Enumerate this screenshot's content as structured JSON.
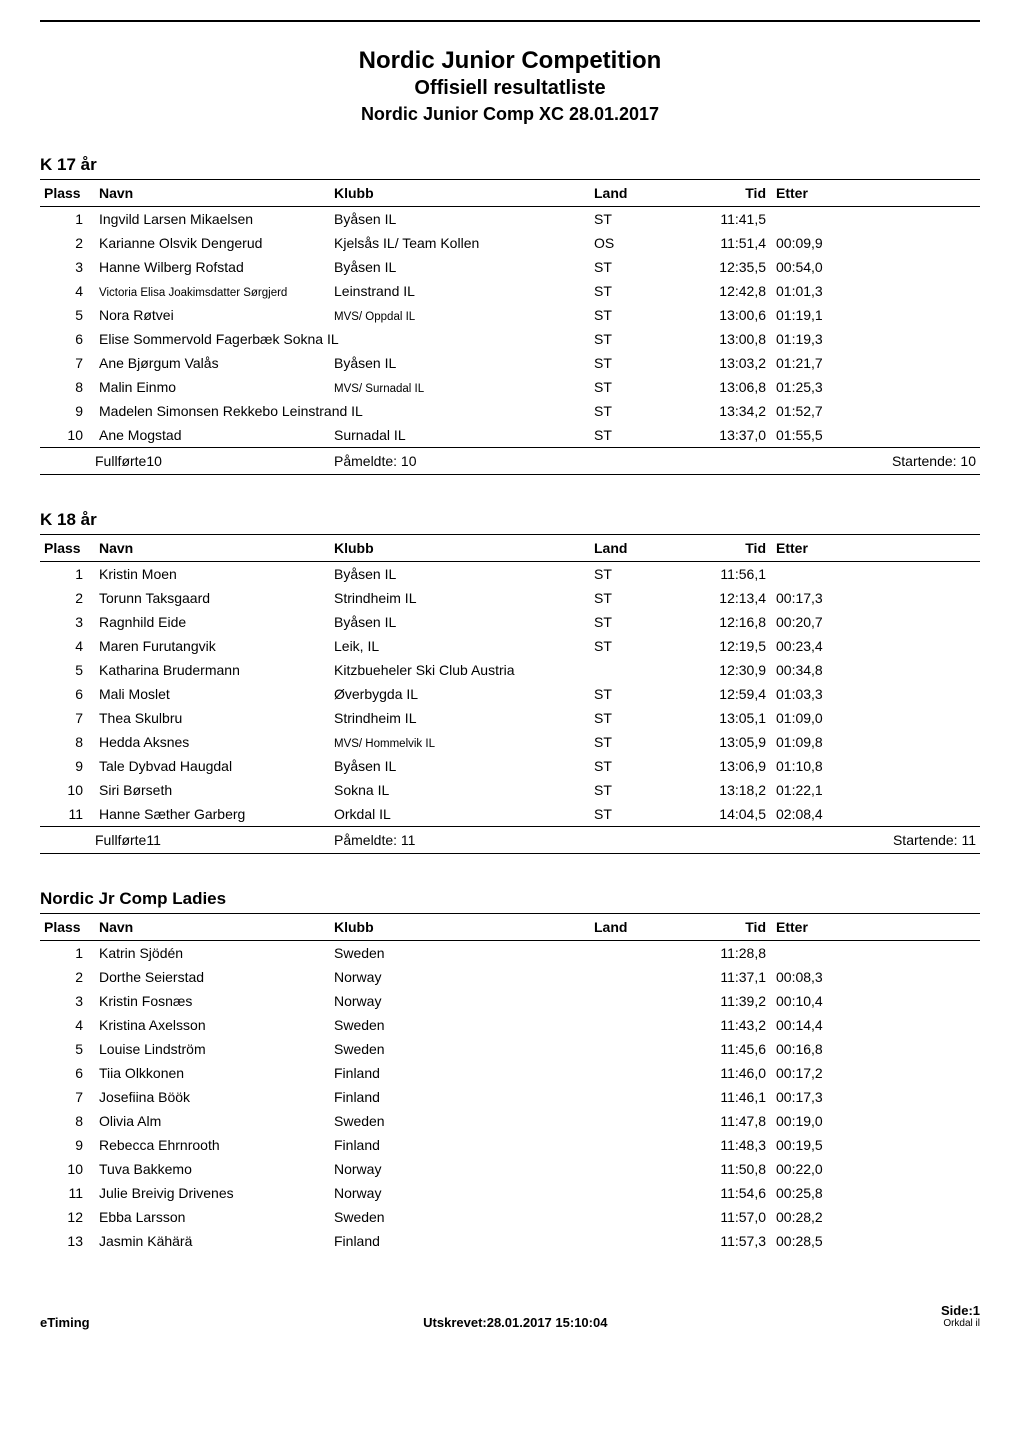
{
  "header": {
    "title": "Nordic Junior Competition",
    "subtitle": "Offisiell resultatliste",
    "comp_name": "Nordic Junior Comp XC 28.01.2017"
  },
  "columns": {
    "plass": "Plass",
    "navn": "Navn",
    "klubb": "Klubb",
    "land": "Land",
    "tid": "Tid",
    "etter": "Etter"
  },
  "sections": [
    {
      "title": "K 17 år",
      "rows": [
        {
          "plass": "1",
          "navn": "Ingvild Larsen Mikaelsen",
          "klubb": "Byåsen IL",
          "land": "ST",
          "tid": "11:41,5",
          "etter": ""
        },
        {
          "plass": "2",
          "navn": "Karianne Olsvik Dengerud",
          "klubb": "Kjelsås IL/ Team Kollen",
          "land": "OS",
          "tid": "11:51,4",
          "etter": "00:09,9"
        },
        {
          "plass": "3",
          "navn": "Hanne Wilberg Rofstad",
          "klubb": "Byåsen IL",
          "land": "ST",
          "tid": "12:35,5",
          "etter": "00:54,0"
        },
        {
          "plass": "4",
          "navn": "Victoria Elisa Joakimsdatter Sørgjerd",
          "navn_small": true,
          "klubb": "Leinstrand IL",
          "land": "ST",
          "tid": "12:42,8",
          "etter": "01:01,3"
        },
        {
          "plass": "5",
          "navn": "Nora Røtvei",
          "klubb": "MVS/ Oppdal IL",
          "klubb_small": true,
          "land": "ST",
          "tid": "13:00,6",
          "etter": "01:19,1"
        },
        {
          "plass": "6",
          "navn": "Elise Sommervold Fagerbæk",
          "klubb": "Sokna IL",
          "merged_navn_klubb": true,
          "land": "ST",
          "tid": "13:00,8",
          "etter": "01:19,3"
        },
        {
          "plass": "7",
          "navn": "Ane Bjørgum Valås",
          "klubb": "Byåsen IL",
          "land": "ST",
          "tid": "13:03,2",
          "etter": "01:21,7"
        },
        {
          "plass": "8",
          "navn": "Malin Einmo",
          "klubb": "MVS/ Surnadal IL",
          "klubb_small": true,
          "land": "ST",
          "tid": "13:06,8",
          "etter": "01:25,3"
        },
        {
          "plass": "9",
          "navn": "Madelen Simonsen Rekkebo",
          "klubb": "Leinstrand IL",
          "merged_navn_klubb": true,
          "land": "ST",
          "tid": "13:34,2",
          "etter": "01:52,7"
        },
        {
          "plass": "10",
          "navn": "Ane Mogstad",
          "klubb": "Surnadal IL",
          "land": "ST",
          "tid": "13:37,0",
          "etter": "01:55,5"
        }
      ],
      "summary": {
        "fullforte": "Fullførte10",
        "pameldte": "Påmeldte: 10",
        "startende": "Startende: 10"
      }
    },
    {
      "title": "K 18 år",
      "rows": [
        {
          "plass": "1",
          "navn": "Kristin Moen",
          "klubb": "Byåsen IL",
          "land": "ST",
          "tid": "11:56,1",
          "etter": ""
        },
        {
          "plass": "2",
          "navn": "Torunn Taksgaard",
          "klubb": "Strindheim IL",
          "land": "ST",
          "tid": "12:13,4",
          "etter": "00:17,3"
        },
        {
          "plass": "3",
          "navn": "Ragnhild Eide",
          "klubb": "Byåsen IL",
          "land": "ST",
          "tid": "12:16,8",
          "etter": "00:20,7"
        },
        {
          "plass": "4",
          "navn": "Maren Furutangvik",
          "klubb": "Leik, IL",
          "land": "ST",
          "tid": "12:19,5",
          "etter": "00:23,4"
        },
        {
          "plass": "5",
          "navn": "Katharina Brudermann",
          "klubb": "Kitzbueheler Ski Club Austria",
          "land": "",
          "tid": "12:30,9",
          "etter": "00:34,8"
        },
        {
          "plass": "6",
          "navn": "Mali Moslet",
          "klubb": "Øverbygda IL",
          "land": "ST",
          "tid": "12:59,4",
          "etter": "01:03,3"
        },
        {
          "plass": "7",
          "navn": "Thea Skulbru",
          "klubb": "Strindheim IL",
          "land": "ST",
          "tid": "13:05,1",
          "etter": "01:09,0"
        },
        {
          "plass": "8",
          "navn": "Hedda Aksnes",
          "klubb": "MVS/ Hommelvik IL",
          "klubb_small": true,
          "land": "ST",
          "tid": "13:05,9",
          "etter": "01:09,8"
        },
        {
          "plass": "9",
          "navn": "Tale Dybvad Haugdal",
          "klubb": "Byåsen IL",
          "land": "ST",
          "tid": "13:06,9",
          "etter": "01:10,8"
        },
        {
          "plass": "10",
          "navn": "Siri Børseth",
          "klubb": "Sokna IL",
          "land": "ST",
          "tid": "13:18,2",
          "etter": "01:22,1"
        },
        {
          "plass": "11",
          "navn": "Hanne Sæther Garberg",
          "klubb": "Orkdal IL",
          "land": "ST",
          "tid": "14:04,5",
          "etter": "02:08,4"
        }
      ],
      "summary": {
        "fullforte": "Fullførte11",
        "pameldte": "Påmeldte: 11",
        "startende": "Startende: 11"
      }
    },
    {
      "title": "Nordic Jr Comp Ladies",
      "rows": [
        {
          "plass": "1",
          "navn": "Katrin Sjödén",
          "klubb": "Sweden",
          "land": "",
          "tid": "11:28,8",
          "etter": ""
        },
        {
          "plass": "2",
          "navn": "Dorthe Seierstad",
          "klubb": "Norway",
          "land": "",
          "tid": "11:37,1",
          "etter": "00:08,3"
        },
        {
          "plass": "3",
          "navn": "Kristin Fosnæs",
          "klubb": "Norway",
          "land": "",
          "tid": "11:39,2",
          "etter": "00:10,4"
        },
        {
          "plass": "4",
          "navn": "Kristina Axelsson",
          "klubb": "Sweden",
          "land": "",
          "tid": "11:43,2",
          "etter": "00:14,4"
        },
        {
          "plass": "5",
          "navn": "Louise Lindström",
          "klubb": "Sweden",
          "land": "",
          "tid": "11:45,6",
          "etter": "00:16,8"
        },
        {
          "plass": "6",
          "navn": "Tiia Olkkonen",
          "klubb": "Finland",
          "land": "",
          "tid": "11:46,0",
          "etter": "00:17,2"
        },
        {
          "plass": "7",
          "navn": "Josefiina Böök",
          "klubb": "Finland",
          "land": "",
          "tid": "11:46,1",
          "etter": "00:17,3"
        },
        {
          "plass": "8",
          "navn": "Olivia Alm",
          "klubb": "Sweden",
          "land": "",
          "tid": "11:47,8",
          "etter": "00:19,0"
        },
        {
          "plass": "9",
          "navn": "Rebecca Ehrnrooth",
          "klubb": "Finland",
          "land": "",
          "tid": "11:48,3",
          "etter": "00:19,5"
        },
        {
          "plass": "10",
          "navn": "Tuva Bakkemo",
          "klubb": "Norway",
          "land": "",
          "tid": "11:50,8",
          "etter": "00:22,0"
        },
        {
          "plass": "11",
          "navn": "Julie Breivig Drivenes",
          "klubb": "Norway",
          "land": "",
          "tid": "11:54,6",
          "etter": "00:25,8"
        },
        {
          "plass": "12",
          "navn": "Ebba Larsson",
          "klubb": "Sweden",
          "land": "",
          "tid": "11:57,0",
          "etter": "00:28,2"
        },
        {
          "plass": "13",
          "navn": "Jasmin Kähärä",
          "klubb": "Finland",
          "land": "",
          "tid": "11:57,3",
          "etter": "00:28,5"
        }
      ],
      "summary": null
    }
  ],
  "footer": {
    "left": "eTiming",
    "mid": "Utskrevet:28.01.2017 15:10:04",
    "side": "Side:1",
    "orkdal": "Orkdal il"
  },
  "colors": {
    "text": "#000000",
    "background": "#ffffff",
    "rule": "#000000"
  }
}
